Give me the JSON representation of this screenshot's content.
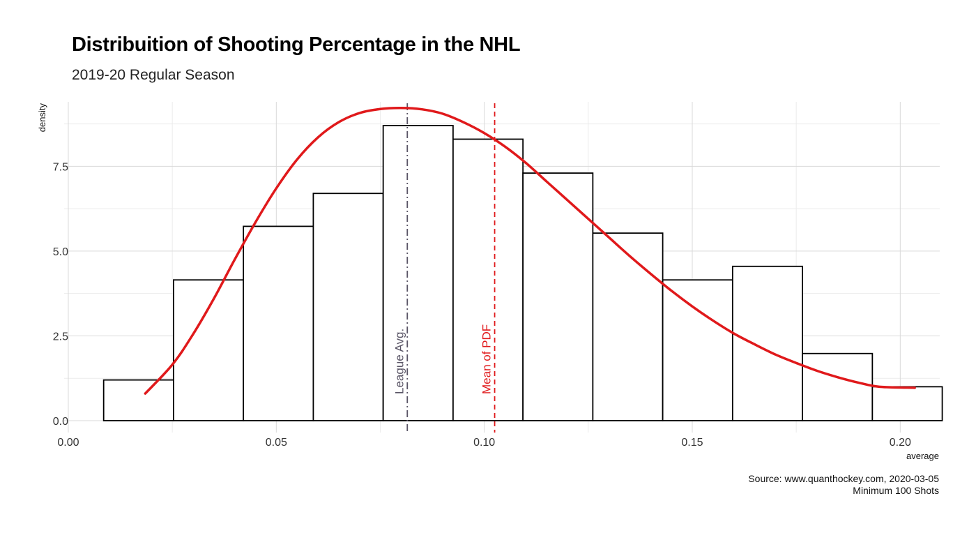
{
  "chart_data": {
    "type": "bar",
    "title": "Distribuition of Shooting Percentage in the NHL",
    "subtitle": "2019-20 Regular Season",
    "caption": [
      "Source: www.quanthockey.com, 2020-03-05",
      "Minimum 100 Shots"
    ],
    "xlabel": "average",
    "ylabel": "density",
    "xlim": [
      -0.001,
      0.2095
    ],
    "ylim": [
      -0.35,
      9.4
    ],
    "x_ticks": [
      "0.00",
      "0.05",
      "0.10",
      "0.15",
      "0.20"
    ],
    "x_tick_values": [
      0.0,
      0.05,
      0.1,
      0.15,
      0.2
    ],
    "y_ticks": [
      "0.0",
      "2.5",
      "5.0",
      "7.5"
    ],
    "y_tick_values": [
      0.0,
      2.5,
      5.0,
      7.5
    ],
    "grid": true,
    "histogram": {
      "bins": [
        {
          "x0": 0.0085,
          "x1": 0.0253,
          "density": 1.2
        },
        {
          "x0": 0.0253,
          "x1": 0.0421,
          "density": 4.15
        },
        {
          "x0": 0.0421,
          "x1": 0.0589,
          "density": 5.73
        },
        {
          "x0": 0.0589,
          "x1": 0.0757,
          "density": 6.7
        },
        {
          "x0": 0.0757,
          "x1": 0.0925,
          "density": 8.7
        },
        {
          "x0": 0.0925,
          "x1": 0.1093,
          "density": 8.3
        },
        {
          "x0": 0.1093,
          "x1": 0.1261,
          "density": 7.3
        },
        {
          "x0": 0.1261,
          "x1": 0.1429,
          "density": 5.53
        },
        {
          "x0": 0.1429,
          "x1": 0.1597,
          "density": 4.15
        },
        {
          "x0": 0.1597,
          "x1": 0.1765,
          "density": 4.55
        },
        {
          "x0": 0.1765,
          "x1": 0.1933,
          "density": 1.98
        },
        {
          "x0": 0.1933,
          "x1": 0.2101,
          "density": 1.0
        }
      ],
      "fill": "#ffffff",
      "stroke": "#000000"
    },
    "pdf_curve": {
      "color": "#e0191b",
      "x_range": [
        0.0185,
        0.2035
      ],
      "points": [
        [
          0.0185,
          0.8
        ],
        [
          0.025,
          1.65
        ],
        [
          0.03,
          2.55
        ],
        [
          0.035,
          3.6
        ],
        [
          0.04,
          4.75
        ],
        [
          0.045,
          5.85
        ],
        [
          0.05,
          6.85
        ],
        [
          0.055,
          7.7
        ],
        [
          0.06,
          8.35
        ],
        [
          0.065,
          8.8
        ],
        [
          0.07,
          9.07
        ],
        [
          0.075,
          9.19
        ],
        [
          0.08,
          9.22
        ],
        [
          0.085,
          9.18
        ],
        [
          0.09,
          9.05
        ],
        [
          0.095,
          8.8
        ],
        [
          0.1,
          8.48
        ],
        [
          0.105,
          8.08
        ],
        [
          0.11,
          7.6
        ],
        [
          0.115,
          7.05
        ],
        [
          0.12,
          6.5
        ],
        [
          0.125,
          5.95
        ],
        [
          0.13,
          5.4
        ],
        [
          0.135,
          4.85
        ],
        [
          0.14,
          4.33
        ],
        [
          0.145,
          3.83
        ],
        [
          0.15,
          3.37
        ],
        [
          0.155,
          2.95
        ],
        [
          0.16,
          2.57
        ],
        [
          0.165,
          2.25
        ],
        [
          0.17,
          1.95
        ],
        [
          0.175,
          1.7
        ],
        [
          0.18,
          1.47
        ],
        [
          0.185,
          1.28
        ],
        [
          0.19,
          1.12
        ],
        [
          0.195,
          1.0
        ],
        [
          0.2035,
          0.97
        ]
      ]
    },
    "vlines": [
      {
        "label": "League Avg.",
        "x": 0.0815,
        "color": "#5a5566",
        "dash": "10,4,2,4"
      },
      {
        "label": "Mean of PDF",
        "x": 0.1025,
        "color": "#e0191b",
        "dash": "7,5"
      }
    ]
  }
}
